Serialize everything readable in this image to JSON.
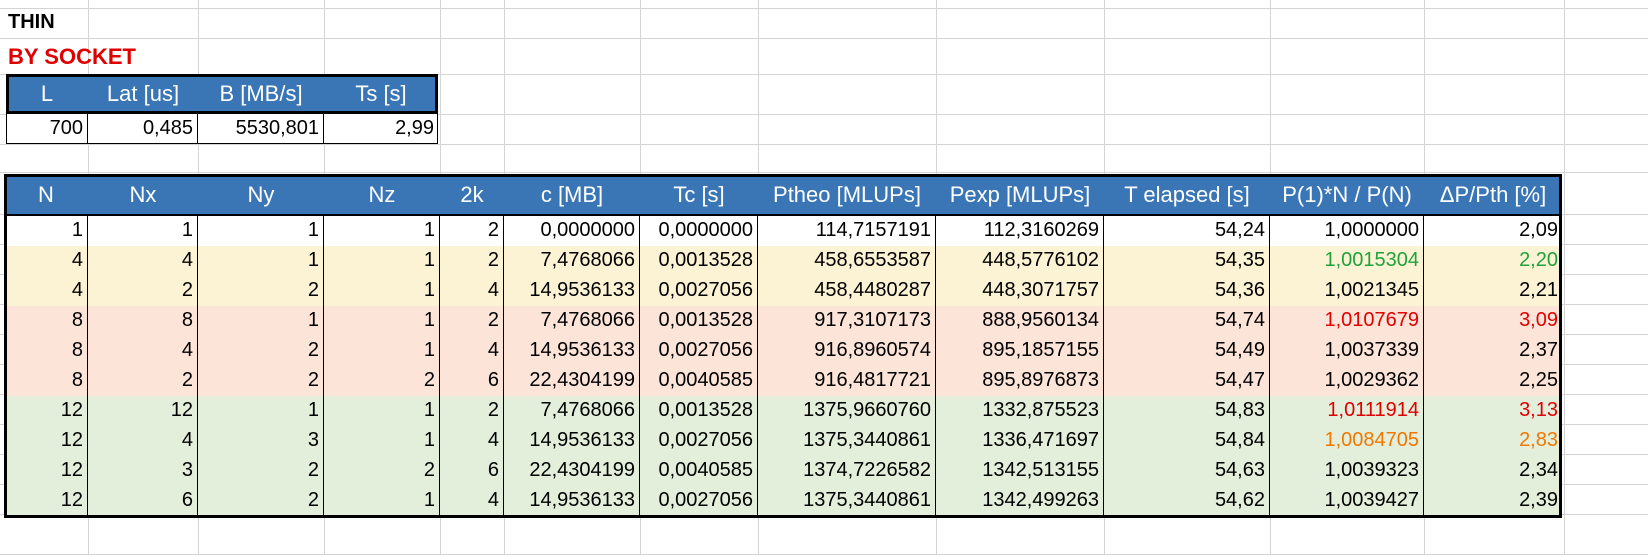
{
  "sheet": {
    "title": "THIN",
    "subtitle": "BY SOCKET"
  },
  "params_table": {
    "headers": [
      "L",
      "Lat [us]",
      "B [MB/s]",
      "Ts [s]"
    ],
    "row": [
      "700",
      "0,485",
      "5530,801",
      "2,99"
    ]
  },
  "results_table": {
    "headers": [
      "N",
      "Nx",
      "Ny",
      "Nz",
      "2k",
      "c [MB]",
      "Tc [s]",
      "Ptheo [MLUPs]",
      "Pexp [MLUPs]",
      "T elapsed [s]",
      "P(1)*N / P(N)",
      "ΔP/Pth [%]"
    ],
    "rows": [
      [
        "1",
        "1",
        "1",
        "1",
        "2",
        "0,0000000",
        "0,0000000",
        "114,7157191",
        "112,3160269",
        "54,24",
        "1,0000000",
        "2,09"
      ],
      [
        "4",
        "4",
        "1",
        "1",
        "2",
        "7,4768066",
        "0,0013528",
        "458,6553587",
        "448,5776102",
        "54,35",
        "1,0015304",
        "2,20"
      ],
      [
        "4",
        "2",
        "2",
        "1",
        "4",
        "14,9536133",
        "0,0027056",
        "458,4480287",
        "448,3071757",
        "54,36",
        "1,0021345",
        "2,21"
      ],
      [
        "8",
        "8",
        "1",
        "1",
        "2",
        "7,4768066",
        "0,0013528",
        "917,3107173",
        "888,9560134",
        "54,74",
        "1,0107679",
        "3,09"
      ],
      [
        "8",
        "4",
        "2",
        "1",
        "4",
        "14,9536133",
        "0,0027056",
        "916,8960574",
        "895,1857155",
        "54,49",
        "1,0037339",
        "2,37"
      ],
      [
        "8",
        "2",
        "2",
        "2",
        "6",
        "22,4304199",
        "0,0040585",
        "916,4817721",
        "895,8976873",
        "54,47",
        "1,0029362",
        "2,25"
      ],
      [
        "12",
        "12",
        "1",
        "1",
        "2",
        "7,4768066",
        "0,0013528",
        "1375,9660760",
        "1332,875523",
        "54,83",
        "1,0111914",
        "3,13"
      ],
      [
        "12",
        "4",
        "3",
        "1",
        "4",
        "14,9536133",
        "0,0027056",
        "1375,3440861",
        "1336,471697",
        "54,84",
        "1,0084705",
        "2,83"
      ],
      [
        "12",
        "3",
        "2",
        "2",
        "6",
        "22,4304199",
        "0,0040585",
        "1374,7226582",
        "1342,513155",
        "54,63",
        "1,0039323",
        "2,34"
      ],
      [
        "12",
        "6",
        "2",
        "1",
        "4",
        "14,9536133",
        "0,0027056",
        "1375,3440861",
        "1342,499263",
        "54,62",
        "1,0039427",
        "2,39"
      ]
    ],
    "row_fills": [
      "#ffffff",
      "#fcf2d4",
      "#fcf2d4",
      "#fce4d8",
      "#fce4d8",
      "#fce4d8",
      "#e3eedb",
      "#e3eedb",
      "#e3eedb",
      "#e3eedb"
    ],
    "highlight_colors": {
      "1": "#1fa33a",
      "3": "#e00000",
      "6": "#e00000",
      "7": "#f07800"
    }
  },
  "colors": {
    "header_fill": "#3a76b5",
    "gridline": "#d4d4d4",
    "title_red": "#e00000"
  }
}
